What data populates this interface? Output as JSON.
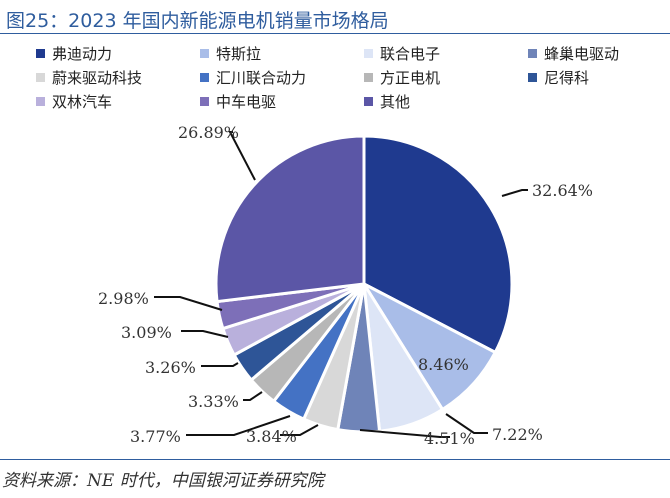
{
  "header": {
    "title": "图25：2023 年国内新能源电机销量市场格局"
  },
  "chart_data": {
    "type": "pie",
    "title": "2023 年国内新能源电机销量市场格局",
    "series": [
      {
        "name": "弗迪动力",
        "value": 32.64,
        "label": "32.64%",
        "color": "#1f3a8f"
      },
      {
        "name": "特斯拉",
        "value": 8.46,
        "label": "8.46%",
        "color": "#a9bde8"
      },
      {
        "name": "联合电子",
        "value": 7.22,
        "label": "7.22%",
        "color": "#dde5f6"
      },
      {
        "name": "蜂巢电驱动",
        "value": 4.51,
        "label": "4.51%",
        "color": "#6f84b8"
      },
      {
        "name": "蔚来驱动科技",
        "value": 3.84,
        "label": "3.84%",
        "color": "#d8d8d8"
      },
      {
        "name": "汇川联合动力",
        "value": 3.77,
        "label": "3.77%",
        "color": "#4472c4"
      },
      {
        "name": "方正电机",
        "value": 3.33,
        "label": "3.33%",
        "color": "#b7b7b7"
      },
      {
        "name": "尼得科",
        "value": 3.26,
        "label": "3.26%",
        "color": "#2e5597"
      },
      {
        "name": "双林汽车",
        "value": 3.09,
        "label": "3.09%",
        "color": "#b9b0dc"
      },
      {
        "name": "中车电驱",
        "value": 2.98,
        "label": "2.98%",
        "color": "#7d6fb8"
      },
      {
        "name": "其他",
        "value": 26.89,
        "label": "26.89%",
        "color": "#5b56a6"
      }
    ],
    "legend_position": "top"
  },
  "footer": {
    "source": "资料来源：NE 时代，中国银河证券研究院"
  }
}
